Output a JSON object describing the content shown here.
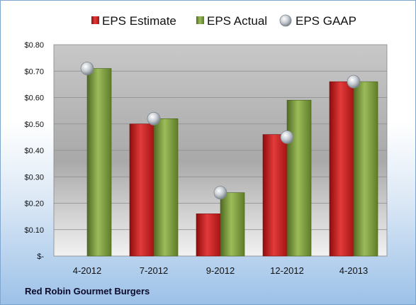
{
  "company": "Red Robin Gourmet Burgers",
  "chart_data": {
    "type": "bar",
    "categories": [
      "4-2012",
      "7-2012",
      "9-2012",
      "12-2012",
      "4-2013"
    ],
    "series": [
      {
        "name": "EPS Estimate",
        "type": "bar",
        "color": "#cc1f1f",
        "values": [
          null,
          0.5,
          0.16,
          0.46,
          0.66
        ]
      },
      {
        "name": "EPS Actual",
        "type": "bar",
        "color": "#7a9b3a",
        "values": [
          0.71,
          0.52,
          0.24,
          0.59,
          0.66
        ]
      },
      {
        "name": "EPS GAAP",
        "type": "marker",
        "color": "#b8bfc6",
        "values": [
          0.71,
          0.52,
          0.24,
          0.45,
          0.66
        ]
      }
    ],
    "ylim": [
      0,
      0.8
    ],
    "yticks": [
      0,
      0.1,
      0.2,
      0.3,
      0.4,
      0.5,
      0.6,
      0.7,
      0.8
    ],
    "ytick_labels": [
      "$-",
      "$0.10",
      "$0.20",
      "$0.30",
      "$0.40",
      "$0.50",
      "$0.60",
      "$0.70",
      "$0.80"
    ],
    "grid": true,
    "legend_position": "top"
  }
}
